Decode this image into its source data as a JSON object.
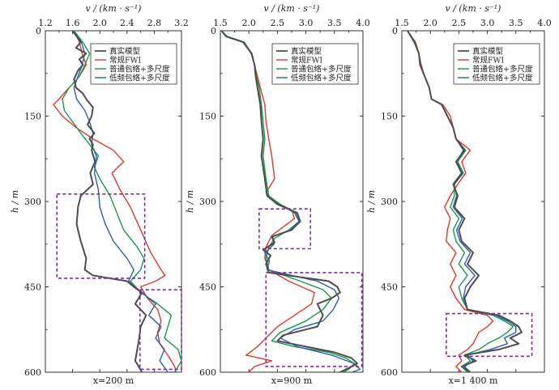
{
  "colors": {
    "true": "#4d4d4d",
    "fwi": "#e0382b",
    "envelope": "#199a49",
    "lowfreq": "#2c5fae",
    "highlight": "#7b2d9e"
  },
  "chart_data": [
    {
      "type": "line",
      "x_label": "v / (km · s⁻¹)",
      "y_label": "h / m",
      "caption": "x=200 m",
      "xlim": [
        1.2,
        3.2
      ],
      "ylim": [
        0,
        600
      ],
      "x_ticks": [
        "1.2",
        "1.6",
        "2.0",
        "2.4",
        "2.8",
        "3.2"
      ],
      "x_tick_values": [
        1.2,
        1.6,
        2.0,
        2.4,
        2.8,
        3.2
      ],
      "y_ticks": [
        "0",
        "150",
        "300",
        "450",
        "600"
      ],
      "y_tick_values": [
        0,
        150,
        300,
        450,
        600
      ],
      "legend": [
        "真实模型",
        "常规FWI",
        "普通包络+多尺度",
        "低频包络+多尺度"
      ],
      "highlight_boxes": [
        {
          "v": [
            1.37,
            2.66
          ],
          "h": [
            287,
            435
          ]
        },
        {
          "v": [
            2.59,
            3.2
          ],
          "h": [
            455,
            595
          ]
        }
      ],
      "series": [
        {
          "name": "真实模型",
          "h": [
            0,
            20,
            30,
            40,
            50,
            60,
            70,
            85,
            100,
            110,
            120,
            135,
            150,
            165,
            180,
            190,
            200,
            210,
            230,
            250,
            270,
            290,
            310,
            340,
            370,
            400,
            420,
            430,
            440,
            450,
            460,
            480,
            500,
            520,
            540,
            560,
            580,
            600
          ],
          "v": [
            1.6,
            1.72,
            1.65,
            1.8,
            1.7,
            1.75,
            1.68,
            1.62,
            1.65,
            1.75,
            1.8,
            1.9,
            1.88,
            1.82,
            1.92,
            1.85,
            1.9,
            1.88,
            1.93,
            1.86,
            1.9,
            1.72,
            1.68,
            1.66,
            1.72,
            1.8,
            1.78,
            1.9,
            2.4,
            2.5,
            2.62,
            2.52,
            2.68,
            2.6,
            2.58,
            2.55,
            2.52,
            2.62
          ]
        },
        {
          "name": "常规FWI",
          "h": [
            0,
            20,
            40,
            60,
            80,
            100,
            120,
            130,
            150,
            170,
            190,
            210,
            230,
            250,
            280,
            310,
            350,
            390,
            420,
            430,
            440,
            450,
            470,
            490,
            510,
            530,
            550,
            570,
            590,
            600
          ],
          "v": [
            1.62,
            1.7,
            1.74,
            1.8,
            1.7,
            1.55,
            1.4,
            1.32,
            1.45,
            1.65,
            1.9,
            2.2,
            2.35,
            2.18,
            2.3,
            2.45,
            2.6,
            2.75,
            2.9,
            2.96,
            2.82,
            2.6,
            2.7,
            2.85,
            2.9,
            2.85,
            2.88,
            3.0,
            3.1,
            3.12
          ]
        },
        {
          "name": "普通包络+多尺度",
          "h": [
            0,
            20,
            40,
            60,
            80,
            100,
            120,
            140,
            160,
            180,
            200,
            220,
            240,
            260,
            290,
            320,
            350,
            380,
            400,
            420,
            440,
            460,
            480,
            500,
            520,
            540,
            560,
            580,
            600
          ],
          "v": [
            1.62,
            1.75,
            1.85,
            1.78,
            1.7,
            1.55,
            1.45,
            1.48,
            1.6,
            1.72,
            1.85,
            1.98,
            1.92,
            2.0,
            2.15,
            2.25,
            2.35,
            2.55,
            2.65,
            2.6,
            2.45,
            2.6,
            2.85,
            3.05,
            3.0,
            2.95,
            3.15,
            3.2,
            3.1
          ]
        },
        {
          "name": "低频包络+多尺度",
          "h": [
            0,
            20,
            40,
            60,
            80,
            100,
            120,
            140,
            160,
            180,
            200,
            220,
            250,
            280,
            310,
            340,
            370,
            400,
            420,
            440,
            460,
            480,
            500,
            520,
            540,
            560,
            580,
            600
          ],
          "v": [
            1.6,
            1.73,
            1.78,
            1.74,
            1.68,
            1.62,
            1.66,
            1.78,
            1.85,
            1.9,
            1.88,
            1.95,
            1.92,
            1.98,
            2.0,
            2.08,
            2.2,
            2.4,
            2.5,
            2.42,
            2.62,
            2.82,
            2.72,
            2.9,
            2.82,
            2.95,
            2.88,
            3.0
          ]
        }
      ]
    },
    {
      "type": "line",
      "x_label": "v / (km · s⁻¹)",
      "y_label": "h / m",
      "caption": "x=900 m",
      "xlim": [
        1.5,
        4.0
      ],
      "ylim": [
        0,
        600
      ],
      "x_ticks": [
        "1.5",
        "2.0",
        "2.5",
        "3.0",
        "3.5",
        "4.0"
      ],
      "x_tick_values": [
        1.5,
        2.0,
        2.5,
        3.0,
        3.5,
        4.0
      ],
      "y_ticks": [
        "0",
        "150",
        "300",
        "450",
        "600"
      ],
      "y_tick_values": [
        0,
        150,
        300,
        450,
        600
      ],
      "legend": [
        "真实模型",
        "常规FWI",
        "普通包络+多尺度",
        "低频包络+多尺度"
      ],
      "highlight_boxes": [
        {
          "v": [
            2.18,
            3.08
          ],
          "h": [
            313,
            383
          ]
        },
        {
          "v": [
            2.3,
            3.98
          ],
          "h": [
            425,
            590
          ]
        }
      ],
      "series": [
        {
          "name": "真实模型",
          "h": [
            0,
            10,
            20,
            40,
            60,
            80,
            100,
            130,
            160,
            190,
            220,
            260,
            290,
            305,
            320,
            335,
            350,
            362,
            372,
            385,
            395,
            410,
            425,
            440,
            450,
            460,
            470,
            480,
            500,
            520,
            535,
            545,
            555,
            565,
            575,
            585,
            595,
            600
          ],
          "v": [
            1.52,
            1.6,
            1.9,
            2.05,
            2.1,
            2.12,
            2.15,
            2.2,
            2.22,
            2.25,
            2.22,
            2.28,
            2.32,
            2.5,
            2.85,
            2.9,
            2.75,
            2.4,
            2.45,
            2.25,
            2.38,
            2.3,
            2.35,
            3.4,
            3.55,
            3.6,
            3.45,
            3.2,
            3.3,
            3.2,
            2.6,
            2.5,
            3.0,
            3.5,
            3.8,
            3.9,
            3.7,
            3.6
          ]
        },
        {
          "name": "常规FWI",
          "h": [
            0,
            10,
            20,
            40,
            60,
            80,
            100,
            130,
            160,
            190,
            220,
            260,
            285,
            300,
            315,
            330,
            345,
            360,
            380,
            400,
            420,
            440,
            460,
            480,
            500,
            520,
            540,
            555,
            570,
            580,
            590,
            600
          ],
          "v": [
            1.52,
            1.6,
            1.9,
            2.05,
            2.1,
            2.15,
            2.2,
            2.28,
            2.3,
            2.35,
            2.4,
            2.45,
            2.3,
            2.45,
            2.75,
            2.8,
            2.6,
            2.4,
            2.3,
            2.28,
            2.35,
            2.7,
            3.15,
            3.1,
            2.8,
            2.5,
            2.3,
            2.15,
            1.95,
            2.4,
            2.1,
            2.0
          ]
        },
        {
          "name": "普通包络+多尺度",
          "h": [
            0,
            10,
            20,
            40,
            60,
            80,
            100,
            130,
            160,
            190,
            220,
            260,
            290,
            305,
            320,
            335,
            350,
            365,
            380,
            400,
            420,
            440,
            455,
            470,
            490,
            510,
            530,
            545,
            555,
            565,
            575,
            585,
            595,
            600
          ],
          "v": [
            1.52,
            1.62,
            1.92,
            2.05,
            2.1,
            2.13,
            2.18,
            2.22,
            2.25,
            2.28,
            2.25,
            2.3,
            2.35,
            2.55,
            2.8,
            2.88,
            2.7,
            2.45,
            2.35,
            2.3,
            2.35,
            2.9,
            3.3,
            3.45,
            3.3,
            3.0,
            2.55,
            2.4,
            2.8,
            3.4,
            3.7,
            3.85,
            3.75,
            3.65
          ]
        },
        {
          "name": "低频包络+多尺度",
          "h": [
            0,
            10,
            20,
            40,
            60,
            80,
            100,
            130,
            160,
            190,
            220,
            260,
            290,
            305,
            320,
            335,
            350,
            362,
            375,
            390,
            405,
            420,
            440,
            455,
            470,
            490,
            510,
            525,
            540,
            555,
            570,
            585,
            595,
            600
          ],
          "v": [
            1.52,
            1.6,
            1.9,
            2.04,
            2.1,
            2.12,
            2.15,
            2.2,
            2.22,
            2.25,
            2.22,
            2.28,
            2.32,
            2.52,
            2.82,
            2.88,
            2.72,
            2.42,
            2.44,
            2.28,
            2.36,
            2.32,
            3.2,
            3.5,
            3.58,
            3.48,
            3.3,
            2.8,
            2.55,
            2.85,
            3.45,
            3.85,
            3.95,
            3.8
          ]
        }
      ]
    },
    {
      "type": "line",
      "x_label": "v / (km · s⁻¹)",
      "y_label": "h / m",
      "caption": "x=1 400 m",
      "xlim": [
        1.5,
        4.0
      ],
      "ylim": [
        0,
        600
      ],
      "x_ticks": [
        "1.5",
        "2.0",
        "2.5",
        "3.0",
        "3.5",
        "4.0"
      ],
      "x_tick_values": [
        1.5,
        2.0,
        2.5,
        3.0,
        3.5,
        4.0
      ],
      "y_ticks": [
        "0",
        "150",
        "300",
        "450",
        "600"
      ],
      "y_tick_values": [
        0,
        150,
        300,
        450,
        600
      ],
      "legend": [
        "真实模型",
        "常规FWI",
        "普通包络+多尺度",
        "低频包络+多尺度"
      ],
      "highlight_boxes": [
        {
          "v": [
            2.28,
            3.78
          ],
          "h": [
            497,
            572
          ]
        }
      ],
      "series": [
        {
          "name": "真实模型",
          "h": [
            0,
            20,
            40,
            60,
            80,
            100,
            120,
            130,
            150,
            170,
            190,
            210,
            230,
            250,
            270,
            290,
            310,
            330,
            350,
            370,
            390,
            410,
            430,
            450,
            470,
            490,
            500,
            510,
            520,
            530,
            540,
            550,
            560,
            570,
            580,
            590,
            600
          ],
          "v": [
            1.6,
            1.72,
            1.8,
            1.82,
            1.9,
            1.98,
            2.02,
            2.2,
            2.3,
            2.4,
            2.45,
            2.6,
            2.45,
            2.55,
            2.4,
            2.48,
            2.42,
            2.6,
            2.5,
            2.55,
            2.75,
            2.65,
            2.85,
            2.7,
            2.6,
            2.65,
            3.2,
            3.4,
            3.55,
            3.6,
            3.4,
            3.55,
            3.2,
            2.6,
            2.8,
            2.55,
            2.7
          ]
        },
        {
          "name": "常规FWI",
          "h": [
            0,
            20,
            40,
            60,
            80,
            100,
            120,
            130,
            150,
            170,
            190,
            210,
            230,
            250,
            270,
            290,
            310,
            330,
            350,
            370,
            390,
            410,
            430,
            450,
            470,
            490,
            500,
            510,
            520,
            530,
            540,
            550,
            560,
            570,
            580,
            590,
            600
          ],
          "v": [
            1.6,
            1.74,
            1.8,
            1.84,
            1.9,
            1.98,
            2.02,
            2.22,
            2.35,
            2.4,
            2.45,
            2.7,
            2.55,
            2.62,
            2.48,
            2.35,
            2.25,
            2.35,
            2.3,
            2.28,
            2.45,
            2.35,
            2.45,
            2.35,
            2.45,
            2.6,
            3.0,
            3.1,
            3.0,
            2.85,
            2.8,
            2.75,
            2.65,
            2.5,
            2.55,
            2.45,
            2.55
          ]
        },
        {
          "name": "普通包络+多尺度",
          "h": [
            0,
            20,
            40,
            60,
            80,
            100,
            120,
            130,
            150,
            170,
            190,
            210,
            230,
            250,
            270,
            290,
            310,
            330,
            350,
            370,
            390,
            410,
            430,
            450,
            470,
            490,
            500,
            510,
            520,
            530,
            540,
            550,
            560,
            570,
            580,
            590,
            600
          ],
          "v": [
            1.6,
            1.73,
            1.8,
            1.83,
            1.9,
            1.98,
            2.02,
            2.2,
            2.3,
            2.4,
            2.45,
            2.62,
            2.48,
            2.58,
            2.42,
            2.42,
            2.35,
            2.5,
            2.4,
            2.45,
            2.6,
            2.5,
            2.65,
            2.5,
            2.55,
            2.65,
            3.1,
            3.3,
            3.45,
            3.35,
            3.2,
            3.0,
            2.85,
            2.6,
            2.7,
            2.55,
            2.65
          ]
        },
        {
          "name": "低频包络+多尺度",
          "h": [
            0,
            20,
            40,
            60,
            80,
            100,
            120,
            130,
            150,
            170,
            190,
            210,
            230,
            250,
            270,
            290,
            310,
            330,
            350,
            370,
            390,
            410,
            430,
            450,
            470,
            490,
            500,
            510,
            520,
            530,
            540,
            550,
            560,
            570,
            580,
            590,
            600
          ],
          "v": [
            1.6,
            1.72,
            1.8,
            1.82,
            1.9,
            1.98,
            2.02,
            2.2,
            2.3,
            2.4,
            2.45,
            2.58,
            2.46,
            2.56,
            2.42,
            2.46,
            2.4,
            2.56,
            2.46,
            2.52,
            2.7,
            2.6,
            2.78,
            2.62,
            2.58,
            2.65,
            3.15,
            3.35,
            3.5,
            3.5,
            3.3,
            3.35,
            3.05,
            2.65,
            2.75,
            2.6,
            2.7
          ]
        }
      ]
    }
  ]
}
